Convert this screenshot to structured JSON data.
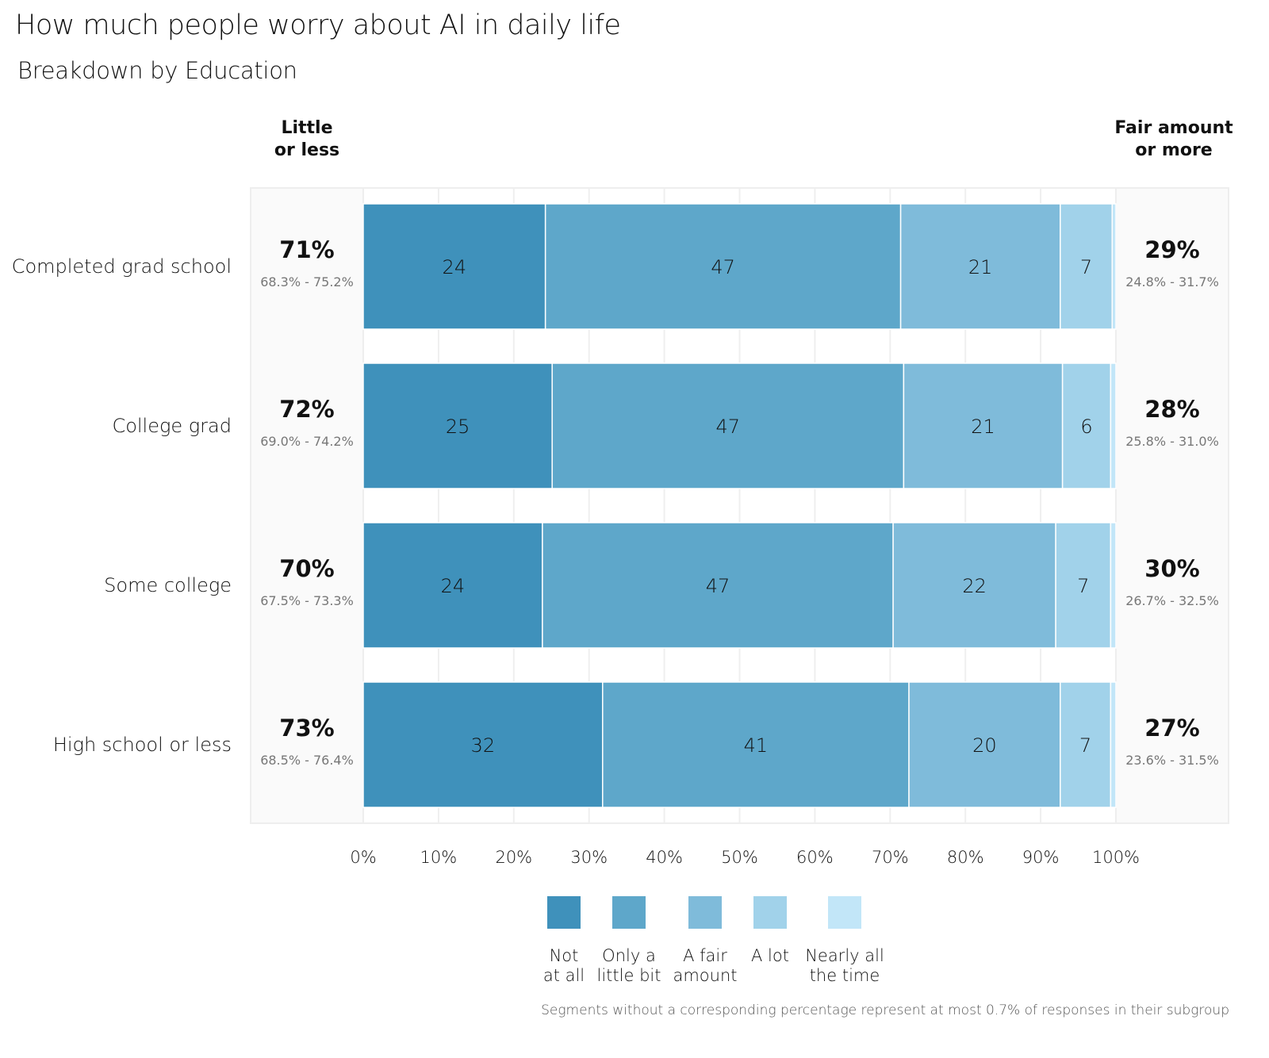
{
  "chart_data": {
    "type": "bar",
    "orientation": "horizontal",
    "stacked": true,
    "title": "How much people worry about AI in daily life",
    "subtitle": "Breakdown by Education",
    "left_summary_header": [
      "Little",
      "or less"
    ],
    "right_summary_header": [
      "Fair amount",
      "or more"
    ],
    "xlabel": "",
    "ylabel": "",
    "xlim": [
      0,
      100
    ],
    "x_ticks": [
      "0%",
      "10%",
      "20%",
      "30%",
      "40%",
      "50%",
      "60%",
      "70%",
      "80%",
      "90%",
      "100%"
    ],
    "grid": true,
    "legend_position": "bottom",
    "categories": [
      "Completed grad school",
      "College grad",
      "Some college",
      "High school or less"
    ],
    "series": [
      {
        "name": "Not at all",
        "legend_lines": [
          "Not",
          "at all"
        ],
        "color": "#3f91bb",
        "values": [
          24.2,
          25.1,
          23.8,
          31.8
        ],
        "labels": [
          "24",
          "25",
          "24",
          "32"
        ]
      },
      {
        "name": "Only a little bit",
        "legend_lines": [
          "Only a",
          "little bit"
        ],
        "color": "#5ea7ca",
        "values": [
          47.2,
          46.7,
          46.6,
          40.7
        ],
        "labels": [
          "47",
          "47",
          "47",
          "41"
        ]
      },
      {
        "name": "A fair amount",
        "legend_lines": [
          "A fair",
          "amount"
        ],
        "color": "#7fbbda",
        "values": [
          21.2,
          21.1,
          21.6,
          20.1
        ],
        "labels": [
          "21",
          "21",
          "22",
          "20"
        ]
      },
      {
        "name": "A lot",
        "legend_lines": [
          "A lot"
        ],
        "color": "#a1d2ea",
        "values": [
          6.9,
          6.4,
          7.3,
          6.7
        ],
        "labels": [
          "7",
          "6",
          "7",
          "7"
        ]
      },
      {
        "name": "Nearly all the time",
        "legend_lines": [
          "Nearly all",
          "the time"
        ],
        "color": "#c2e6f8",
        "values": [
          0.5,
          0.7,
          0.7,
          0.7
        ],
        "labels": [
          "",
          "",
          "",
          ""
        ]
      }
    ],
    "left_summary": [
      {
        "value": "71%",
        "ci": "68.3% - 75.2%"
      },
      {
        "value": "72%",
        "ci": "69.0% - 74.2%"
      },
      {
        "value": "70%",
        "ci": "67.5% - 73.3%"
      },
      {
        "value": "73%",
        "ci": "68.5% - 76.4%"
      }
    ],
    "right_summary": [
      {
        "value": "29%",
        "ci": "24.8% - 31.7%"
      },
      {
        "value": "28%",
        "ci": "25.8% - 31.0%"
      },
      {
        "value": "30%",
        "ci": "26.7% - 32.5%"
      },
      {
        "value": "27%",
        "ci": "23.6% - 31.5%"
      }
    ],
    "footnote": "Segments without a corresponding percentage represent at most 0.7% of responses in their subgroup"
  }
}
